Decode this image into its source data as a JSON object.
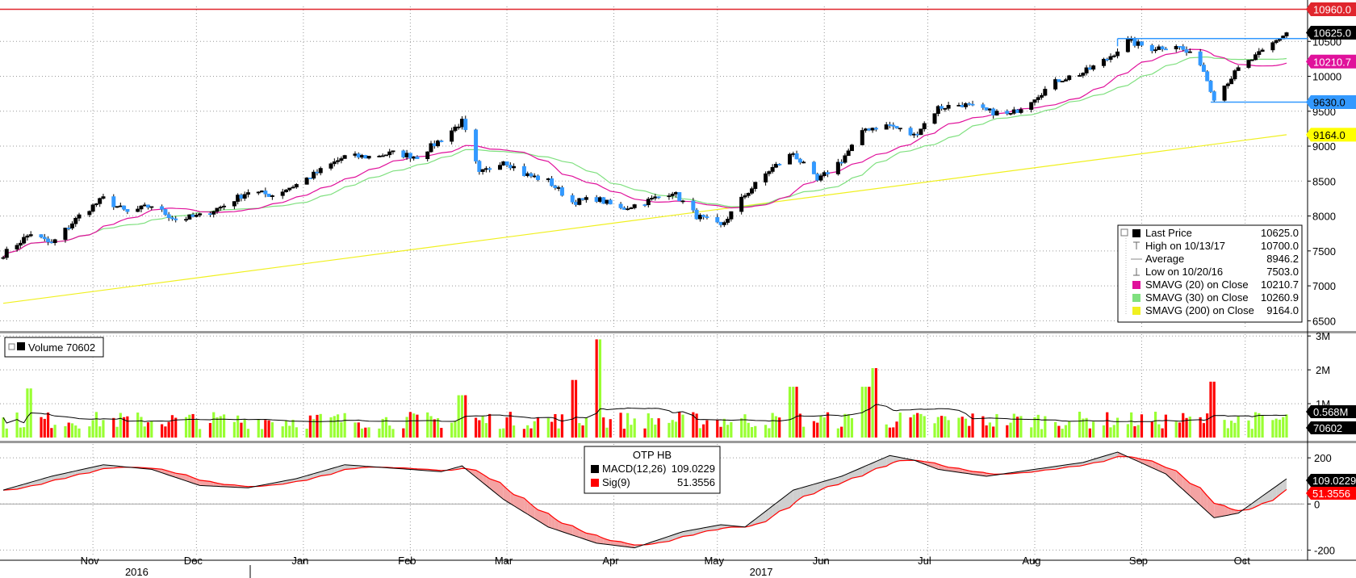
{
  "chart_data": [
    {
      "panel": "price",
      "type": "candlestick",
      "ylim": [
        6400,
        11000
      ],
      "yticks": [
        6500,
        7000,
        7500,
        8000,
        8500,
        9000,
        9500,
        10000,
        10500
      ],
      "ytick_labels": [
        "6500",
        "7000",
        "7500",
        "8000",
        "8500",
        "9000",
        "9500",
        "10000",
        "10500"
      ],
      "grid": true,
      "x_start": "2016-10-06",
      "x_end": "2017-10-13",
      "close_anchors": [
        [
          "2016-10-06",
          7450
        ],
        [
          "2016-10-14",
          7750
        ],
        [
          "2016-10-20",
          7600
        ],
        [
          "2016-10-28",
          8000
        ],
        [
          "2016-11-04",
          8250
        ],
        [
          "2016-11-11",
          8050
        ],
        [
          "2016-11-18",
          8150
        ],
        [
          "2016-11-25",
          7950
        ],
        [
          "2016-12-02",
          8000
        ],
        [
          "2016-12-09",
          8150
        ],
        [
          "2016-12-16",
          8350
        ],
        [
          "2016-12-23",
          8300
        ],
        [
          "2016-12-30",
          8450
        ],
        [
          "2017-01-06",
          8650
        ],
        [
          "2017-01-13",
          8850
        ],
        [
          "2017-01-20",
          8850
        ],
        [
          "2017-01-27",
          8900
        ],
        [
          "2017-02-03",
          8850
        ],
        [
          "2017-02-10",
          9100
        ],
        [
          "2017-02-16",
          9350
        ],
        [
          "2017-02-21",
          8600
        ],
        [
          "2017-02-28",
          8800
        ],
        [
          "2017-03-06",
          8600
        ],
        [
          "2017-03-13",
          8500
        ],
        [
          "2017-03-20",
          8200
        ],
        [
          "2017-03-27",
          8250
        ],
        [
          "2017-04-03",
          8100
        ],
        [
          "2017-04-10",
          8200
        ],
        [
          "2017-04-18",
          8350
        ],
        [
          "2017-04-25",
          8000
        ],
        [
          "2017-05-02",
          7850
        ],
        [
          "2017-05-09",
          8300
        ],
        [
          "2017-05-16",
          8650
        ],
        [
          "2017-05-23",
          8900
        ],
        [
          "2017-05-30",
          8500
        ],
        [
          "2017-06-06",
          8800
        ],
        [
          "2017-06-13",
          9250
        ],
        [
          "2017-06-20",
          9300
        ],
        [
          "2017-06-27",
          9150
        ],
        [
          "2017-07-04",
          9550
        ],
        [
          "2017-07-11",
          9600
        ],
        [
          "2017-07-18",
          9500
        ],
        [
          "2017-07-25",
          9450
        ],
        [
          "2017-08-01",
          9700
        ],
        [
          "2017-08-08",
          9950
        ],
        [
          "2017-08-15",
          10050
        ],
        [
          "2017-08-22",
          10250
        ],
        [
          "2017-08-28",
          10500
        ],
        [
          "2017-09-04",
          10400
        ],
        [
          "2017-09-11",
          10450
        ],
        [
          "2017-09-18",
          10200
        ],
        [
          "2017-09-22",
          9700
        ],
        [
          "2017-09-29",
          10100
        ],
        [
          "2017-10-06",
          10350
        ],
        [
          "2017-10-13",
          10625
        ]
      ],
      "hlines": [
        {
          "value": 10960.0,
          "label": "10960.0",
          "color": "#e0262d"
        },
        {
          "value": 10625.0,
          "label": "10625.0",
          "color": "#000000"
        },
        {
          "value": 10210.7,
          "label": "10210.7",
          "color": "#e0119b"
        },
        {
          "value": 9630.0,
          "label": "9630.0",
          "color": "#3399ff"
        },
        {
          "value": 9164.0,
          "label": "9164.0",
          "color": "#ffff00"
        }
      ],
      "series": [
        {
          "name": "SMAVG (20) on Close",
          "value": 10210.7,
          "color": "#e0119b"
        },
        {
          "name": "SMAVG (30) on Close",
          "value": 10260.9,
          "color": "#7fe07f"
        },
        {
          "name": "SMAVG (200) on Close",
          "value": 9164.0,
          "color": "#f0f020"
        }
      ],
      "legend": {
        "placement": "bottom-right",
        "rows": [
          {
            "label": "Last Price",
            "value": "10625.0",
            "marker": "square",
            "color": "#000000"
          },
          {
            "label": "High on 10/13/17",
            "value": "10700.0",
            "marker": "tick-up",
            "color": "#888888"
          },
          {
            "label": "Average",
            "value": "8946.2",
            "marker": "dash",
            "color": "#888888"
          },
          {
            "label": "Low on 10/20/16",
            "value": "7503.0",
            "marker": "tick-down",
            "color": "#888888"
          },
          {
            "label": "SMAVG (20) on Close",
            "value": "10210.7",
            "marker": "square",
            "color": "#e0119b"
          },
          {
            "label": "SMAVG (30) on Close",
            "value": "10260.9",
            "marker": "square",
            "color": "#7fe07f"
          },
          {
            "label": "SMAVG (200) on Close",
            "value": "9164.0",
            "marker": "square",
            "color": "#f0f020"
          }
        ]
      }
    },
    {
      "panel": "volume",
      "type": "bar",
      "ylim": [
        0,
        3100000
      ],
      "ytick_labels": [
        "3M",
        "2M",
        "1M"
      ],
      "yticks": [
        3000000,
        2000000,
        1000000
      ],
      "legend": {
        "label": "Volume 70602",
        "color": "#000000",
        "placement": "top-left"
      },
      "spikes": [
        [
          "2016-10-14",
          1450000
        ],
        [
          "2017-02-16",
          1250000
        ],
        [
          "2017-03-20",
          1700000
        ],
        [
          "2017-03-27",
          2900000
        ],
        [
          "2017-05-23",
          1500000
        ],
        [
          "2017-06-13",
          1500000
        ],
        [
          "2017-06-16",
          2050000
        ],
        [
          "2017-09-22",
          1650000
        ]
      ],
      "moving_average": 568000,
      "hlines": [
        {
          "value": 568000,
          "label": "0.568M",
          "color": "#000000"
        },
        {
          "value": 70602,
          "label": "70602",
          "color": "#000000"
        }
      ]
    },
    {
      "panel": "macd",
      "type": "line",
      "ylim": [
        -230,
        260
      ],
      "yticks": [
        200,
        0,
        -200
      ],
      "ytick_labels": [
        "200",
        "0",
        "-200"
      ],
      "title": "OTP HB",
      "macd_anchors": [
        [
          "2016-10-06",
          60
        ],
        [
          "2016-10-20",
          120
        ],
        [
          "2016-11-04",
          170
        ],
        [
          "2016-11-18",
          150
        ],
        [
          "2016-12-02",
          80
        ],
        [
          "2016-12-16",
          70
        ],
        [
          "2016-12-30",
          110
        ],
        [
          "2017-01-13",
          170
        ],
        [
          "2017-01-27",
          155
        ],
        [
          "2017-02-10",
          140
        ],
        [
          "2017-02-16",
          165
        ],
        [
          "2017-02-28",
          20
        ],
        [
          "2017-03-13",
          -100
        ],
        [
          "2017-03-27",
          -170
        ],
        [
          "2017-04-07",
          -190
        ],
        [
          "2017-04-21",
          -120
        ],
        [
          "2017-05-02",
          -90
        ],
        [
          "2017-05-09",
          -100
        ],
        [
          "2017-05-23",
          60
        ],
        [
          "2017-06-06",
          120
        ],
        [
          "2017-06-20",
          210
        ],
        [
          "2017-06-27",
          190
        ],
        [
          "2017-07-04",
          150
        ],
        [
          "2017-07-18",
          120
        ],
        [
          "2017-08-01",
          150
        ],
        [
          "2017-08-15",
          180
        ],
        [
          "2017-08-25",
          225
        ],
        [
          "2017-09-08",
          130
        ],
        [
          "2017-09-22",
          -60
        ],
        [
          "2017-09-29",
          -40
        ],
        [
          "2017-10-13",
          109
        ]
      ],
      "series": [
        {
          "name": "MACD(12,26)",
          "value": 109.0229,
          "color": "#000000"
        },
        {
          "name": "Sig(9)",
          "value": 51.3556,
          "color": "#ff0000"
        }
      ],
      "legend": {
        "placement": "top-center",
        "rows": [
          {
            "label": "MACD(12,26)",
            "value": "109.0229",
            "color": "#000000"
          },
          {
            "label": "Sig(9)",
            "value": "51.3556",
            "color": "#ff0000"
          }
        ]
      },
      "hlines": [
        {
          "value": 109.0229,
          "label": "109.0229",
          "color": "#000000"
        },
        {
          "value": 51.3556,
          "label": "51.3556",
          "color": "#ff0000"
        }
      ]
    }
  ],
  "x_axis": {
    "months": [
      {
        "label": "Nov",
        "date": "2016-11-01"
      },
      {
        "label": "Dec",
        "date": "2016-12-01"
      },
      {
        "label": "Jan",
        "date": "2017-01-01"
      },
      {
        "label": "Feb",
        "date": "2017-02-01"
      },
      {
        "label": "Mar",
        "date": "2017-03-01"
      },
      {
        "label": "Apr",
        "date": "2017-04-01"
      },
      {
        "label": "May",
        "date": "2017-05-01"
      },
      {
        "label": "Jun",
        "date": "2017-06-01"
      },
      {
        "label": "Jul",
        "date": "2017-07-01"
      },
      {
        "label": "Aug",
        "date": "2017-08-01"
      },
      {
        "label": "Sep",
        "date": "2017-09-01"
      },
      {
        "label": "Oct",
        "date": "2017-10-01"
      }
    ],
    "years": [
      {
        "label": "2016",
        "date": "2016-11-15"
      },
      {
        "label": "2017",
        "date": "2017-05-15"
      }
    ]
  },
  "colors": {
    "up": "#99ff33",
    "down": "#3399ff",
    "vol_up": "#99ff33",
    "vol_down": "#ff0000",
    "grid": "#999999"
  }
}
